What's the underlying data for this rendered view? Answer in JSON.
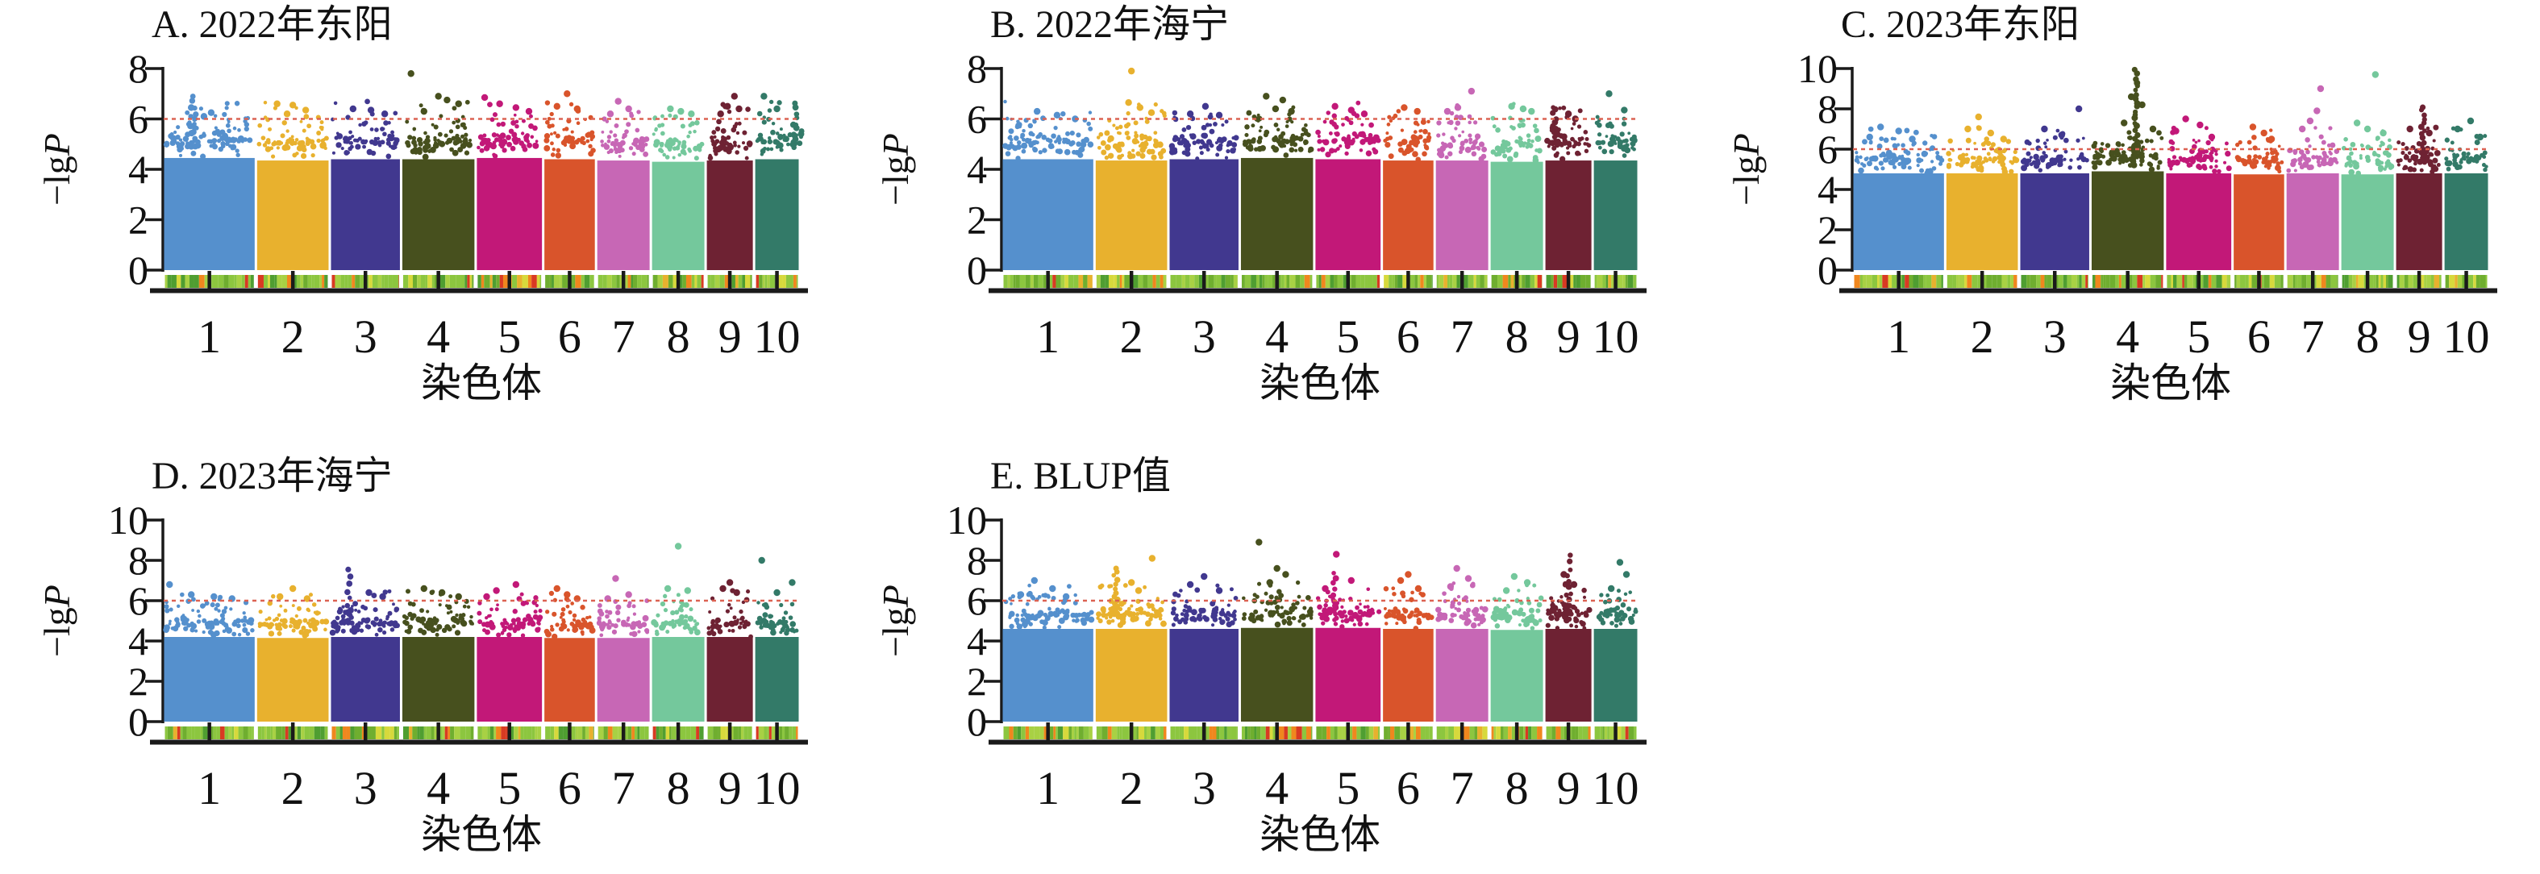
{
  "figure": {
    "background": "#ffffff",
    "ylabel": {
      "prefix": "−lg",
      "italic": "P"
    },
    "xlabel": "染色体",
    "x_tick_labels": [
      "1",
      "2",
      "3",
      "4",
      "5",
      "6",
      "7",
      "8",
      "9",
      "10"
    ],
    "colors": {
      "axis": "#1a1a1a",
      "text": "#1a1a1a",
      "threshold_line": "#dc6252",
      "chromosomes": [
        "#5590cd",
        "#e8b12e",
        "#41388f",
        "#47501e",
        "#c21878",
        "#d9542b",
        "#c767b5",
        "#74c89c",
        "#6e2233",
        "#337a68"
      ],
      "density_palette": [
        "#8cc63f",
        "#6fae2f",
        "#a8d144",
        "#4f9e31",
        "#d7d93c",
        "#f0871e",
        "#d93a22",
        "#e8b12e"
      ],
      "density_weights": [
        0.34,
        0.2,
        0.13,
        0.1,
        0.07,
        0.07,
        0.05,
        0.04
      ]
    },
    "chromosome_width_fractions": [
      0.146,
      0.116,
      0.112,
      0.117,
      0.106,
      0.083,
      0.086,
      0.086,
      0.076,
      0.072
    ]
  },
  "chart_data": [
    {
      "type": "scatter",
      "panel": "A",
      "title": "A. 2022年东阳",
      "ylim": [
        0,
        8
      ],
      "yticks": [
        8,
        6,
        4,
        2,
        0
      ],
      "threshold": 6,
      "grid": false,
      "legend": null,
      "chromosomes": [
        {
          "label": "1",
          "dense_top": 4.95,
          "spike": {
            "frac": 0.33,
            "max": 6.9,
            "n": 8
          },
          "outliers": [
            [
              0.3,
              6.45
            ],
            [
              0.52,
              6.25
            ],
            [
              0.44,
              6.1
            ]
          ]
        },
        {
          "label": "2",
          "dense_top": 4.85,
          "outliers": [
            [
              0.28,
              6.6
            ],
            [
              0.5,
              6.55
            ],
            [
              0.68,
              6.35
            ],
            [
              0.42,
              6.2
            ]
          ]
        },
        {
          "label": "3",
          "dense_top": 4.9,
          "outliers": [
            [
              0.32,
              6.4
            ],
            [
              0.58,
              6.35
            ],
            [
              0.78,
              6.2
            ]
          ]
        },
        {
          "label": "4",
          "dense_top": 4.9,
          "outliers": [
            [
              0.12,
              7.8
            ],
            [
              0.5,
              6.9
            ],
            [
              0.62,
              6.75
            ],
            [
              0.78,
              6.6
            ],
            [
              0.3,
              6.3
            ]
          ]
        },
        {
          "label": "5",
          "dense_top": 4.95,
          "outliers": [
            [
              0.12,
              6.85
            ],
            [
              0.35,
              6.6
            ],
            [
              0.6,
              6.45
            ],
            [
              0.8,
              6.3
            ]
          ]
        },
        {
          "label": "6",
          "dense_top": 4.9,
          "outliers": [
            [
              0.45,
              7.0
            ],
            [
              0.25,
              6.5
            ],
            [
              0.65,
              6.4
            ]
          ]
        },
        {
          "label": "7",
          "dense_top": 4.85,
          "outliers": [
            [
              0.4,
              6.7
            ],
            [
              0.6,
              6.4
            ],
            [
              0.25,
              6.2
            ]
          ]
        },
        {
          "label": "8",
          "dense_top": 4.8,
          "outliers": [
            [
              0.35,
              6.4
            ],
            [
              0.55,
              6.3
            ],
            [
              0.75,
              6.2
            ]
          ]
        },
        {
          "label": "9",
          "dense_top": 4.85,
          "outliers": [
            [
              0.6,
              6.9
            ],
            [
              0.45,
              6.5
            ],
            [
              0.7,
              6.4
            ],
            [
              0.3,
              6.2
            ]
          ]
        },
        {
          "label": "10",
          "dense_top": 4.9,
          "spike": {
            "frac": 0.92,
            "max": 6.6,
            "n": 8
          },
          "outliers": [
            [
              0.2,
              6.9
            ],
            [
              0.5,
              6.4
            ]
          ]
        }
      ]
    },
    {
      "type": "scatter",
      "panel": "B",
      "title": "B. 2022年海宁",
      "ylim": [
        0,
        8
      ],
      "yticks": [
        8,
        6,
        4,
        2,
        0
      ],
      "threshold": 6,
      "grid": false,
      "legend": null,
      "chromosomes": [
        {
          "label": "1",
          "dense_top": 4.9,
          "outliers": [
            [
              0.38,
              6.3
            ],
            [
              0.6,
              6.15
            ],
            [
              0.8,
              6.0
            ]
          ]
        },
        {
          "label": "2",
          "dense_top": 4.85,
          "outliers": [
            [
              0.5,
              7.9
            ],
            [
              0.46,
              6.65
            ],
            [
              0.62,
              6.45
            ],
            [
              0.78,
              6.25
            ]
          ]
        },
        {
          "label": "3",
          "dense_top": 4.9,
          "outliers": [
            [
              0.52,
              6.5
            ],
            [
              0.3,
              6.2
            ],
            [
              0.72,
              6.15
            ]
          ]
        },
        {
          "label": "4",
          "dense_top": 4.95,
          "outliers": [
            [
              0.35,
              6.9
            ],
            [
              0.58,
              6.75
            ],
            [
              0.48,
              6.4
            ],
            [
              0.7,
              6.3
            ]
          ]
        },
        {
          "label": "5",
          "dense_top": 4.9,
          "outliers": [
            [
              0.3,
              6.5
            ],
            [
              0.55,
              6.35
            ],
            [
              0.75,
              6.2
            ]
          ]
        },
        {
          "label": "6",
          "dense_top": 4.85,
          "outliers": [
            [
              0.42,
              6.45
            ],
            [
              0.68,
              6.3
            ]
          ]
        },
        {
          "label": "7",
          "dense_top": 4.85,
          "outliers": [
            [
              0.68,
              7.1
            ],
            [
              0.42,
              6.45
            ],
            [
              0.22,
              6.3
            ]
          ]
        },
        {
          "label": "8",
          "dense_top": 4.8,
          "outliers": [
            [
              0.4,
              6.5
            ],
            [
              0.62,
              6.4
            ],
            [
              0.78,
              6.3
            ]
          ]
        },
        {
          "label": "9",
          "dense_top": 4.85,
          "spike": {
            "frac": 0.2,
            "max": 6.5,
            "n": 10
          },
          "outliers": [
            [
              0.5,
              6.2
            ],
            [
              0.65,
              6.0
            ]
          ]
        },
        {
          "label": "10",
          "dense_top": 4.85,
          "outliers": [
            [
              0.35,
              7.0
            ],
            [
              0.7,
              6.35
            ]
          ]
        }
      ]
    },
    {
      "type": "scatter",
      "panel": "C",
      "title": "C. 2023年东阳",
      "ylim": [
        0,
        10
      ],
      "yticks": [
        10,
        8,
        6,
        4,
        2,
        0
      ],
      "threshold": 6,
      "grid": false,
      "legend": null,
      "chromosomes": [
        {
          "label": "1",
          "dense_top": 5.3,
          "outliers": [
            [
              0.3,
              7.1
            ],
            [
              0.5,
              6.9
            ],
            [
              0.18,
              6.6
            ],
            [
              0.65,
              6.5
            ]
          ]
        },
        {
          "label": "2",
          "dense_top": 5.3,
          "outliers": [
            [
              0.45,
              7.6
            ],
            [
              0.3,
              7.0
            ],
            [
              0.62,
              6.8
            ],
            [
              0.8,
              6.5
            ]
          ]
        },
        {
          "label": "3",
          "dense_top": 5.3,
          "outliers": [
            [
              0.85,
              8.0
            ],
            [
              0.35,
              7.0
            ],
            [
              0.6,
              6.7
            ]
          ]
        },
        {
          "label": "4",
          "dense_top": 5.4,
          "spike": {
            "frac": 0.62,
            "max": 9.9,
            "n": 22
          },
          "outliers": [
            [
              0.55,
              8.6
            ],
            [
              0.7,
              8.2
            ],
            [
              0.45,
              7.3
            ],
            [
              0.85,
              7.0
            ]
          ]
        },
        {
          "label": "5",
          "dense_top": 5.3,
          "outliers": [
            [
              0.3,
              7.5
            ],
            [
              0.52,
              7.2
            ],
            [
              0.15,
              6.9
            ],
            [
              0.7,
              6.6
            ]
          ]
        },
        {
          "label": "6",
          "dense_top": 5.25,
          "outliers": [
            [
              0.38,
              7.1
            ],
            [
              0.6,
              6.8
            ],
            [
              0.75,
              6.5
            ]
          ]
        },
        {
          "label": "7",
          "dense_top": 5.3,
          "outliers": [
            [
              0.65,
              9.0
            ],
            [
              0.58,
              7.9
            ],
            [
              0.45,
              7.4
            ],
            [
              0.3,
              7.0
            ]
          ]
        },
        {
          "label": "8",
          "dense_top": 5.25,
          "outliers": [
            [
              0.65,
              9.7
            ],
            [
              0.3,
              7.3
            ],
            [
              0.5,
              7.0
            ],
            [
              0.8,
              6.8
            ]
          ]
        },
        {
          "label": "9",
          "dense_top": 5.3,
          "spike": {
            "frac": 0.58,
            "max": 8.1,
            "n": 14
          },
          "outliers": [
            [
              0.3,
              7.0
            ],
            [
              0.72,
              6.8
            ]
          ]
        },
        {
          "label": "10",
          "dense_top": 5.3,
          "outliers": [
            [
              0.6,
              7.4
            ],
            [
              0.3,
              7.0
            ],
            [
              0.82,
              6.6
            ]
          ]
        }
      ]
    },
    {
      "type": "scatter",
      "panel": "D",
      "title": "D. 2023年海宁",
      "ylim": [
        0,
        10
      ],
      "yticks": [
        10,
        8,
        6,
        4,
        2,
        0
      ],
      "threshold": 6,
      "grid": false,
      "legend": null,
      "chromosomes": [
        {
          "label": "1",
          "dense_top": 4.7,
          "outliers": [
            [
              0.06,
              6.8
            ],
            [
              0.3,
              6.3
            ],
            [
              0.55,
              6.2
            ],
            [
              0.75,
              6.1
            ]
          ]
        },
        {
          "label": "2",
          "dense_top": 4.65,
          "outliers": [
            [
              0.5,
              6.6
            ],
            [
              0.32,
              6.2
            ],
            [
              0.7,
              6.1
            ]
          ]
        },
        {
          "label": "3",
          "dense_top": 4.7,
          "spike": {
            "frac": 0.26,
            "max": 7.6,
            "n": 8
          },
          "outliers": [
            [
              0.55,
              6.4
            ],
            [
              0.75,
              6.2
            ]
          ]
        },
        {
          "label": "4",
          "dense_top": 4.7,
          "outliers": [
            [
              0.3,
              6.6
            ],
            [
              0.55,
              6.4
            ],
            [
              0.78,
              6.2
            ]
          ]
        },
        {
          "label": "5",
          "dense_top": 4.7,
          "outliers": [
            [
              0.6,
              6.8
            ],
            [
              0.3,
              6.5
            ],
            [
              0.15,
              6.2
            ]
          ]
        },
        {
          "label": "6",
          "dense_top": 4.65,
          "outliers": [
            [
              0.25,
              6.6
            ],
            [
              0.45,
              6.3
            ],
            [
              0.65,
              6.1
            ]
          ]
        },
        {
          "label": "7",
          "dense_top": 4.65,
          "outliers": [
            [
              0.35,
              7.1
            ],
            [
              0.6,
              6.3
            ],
            [
              0.2,
              6.1
            ]
          ]
        },
        {
          "label": "8",
          "dense_top": 4.7,
          "outliers": [
            [
              0.5,
              8.7
            ],
            [
              0.3,
              6.6
            ],
            [
              0.68,
              6.5
            ]
          ]
        },
        {
          "label": "9",
          "dense_top": 4.7,
          "outliers": [
            [
              0.5,
              6.9
            ],
            [
              0.35,
              6.6
            ],
            [
              0.65,
              6.4
            ]
          ]
        },
        {
          "label": "10",
          "dense_top": 4.7,
          "outliers": [
            [
              0.15,
              8.0
            ],
            [
              0.85,
              6.9
            ],
            [
              0.5,
              6.4
            ]
          ]
        }
      ]
    },
    {
      "type": "scatter",
      "panel": "E",
      "title": "E. BLUP值",
      "ylim": [
        0,
        10
      ],
      "yticks": [
        10,
        8,
        6,
        4,
        2,
        0
      ],
      "threshold": 6,
      "grid": false,
      "legend": null,
      "chromosomes": [
        {
          "label": "1",
          "dense_top": 5.1,
          "outliers": [
            [
              0.35,
              7.0
            ],
            [
              0.55,
              6.6
            ],
            [
              0.2,
              6.3
            ],
            [
              0.7,
              6.2
            ]
          ]
        },
        {
          "label": "2",
          "dense_top": 5.1,
          "spike": {
            "frac": 0.28,
            "max": 7.6,
            "n": 12
          },
          "outliers": [
            [
              0.79,
              8.1
            ],
            [
              0.5,
              6.9
            ],
            [
              0.6,
              6.5
            ]
          ]
        },
        {
          "label": "3",
          "dense_top": 5.1,
          "outliers": [
            [
              0.5,
              7.2
            ],
            [
              0.3,
              6.8
            ],
            [
              0.72,
              6.5
            ]
          ]
        },
        {
          "label": "4",
          "dense_top": 5.15,
          "outliers": [
            [
              0.25,
              8.9
            ],
            [
              0.5,
              7.6
            ],
            [
              0.62,
              7.3
            ],
            [
              0.4,
              6.9
            ]
          ]
        },
        {
          "label": "5",
          "dense_top": 5.15,
          "spike": {
            "frac": 0.3,
            "max": 7.4,
            "n": 8
          },
          "outliers": [
            [
              0.32,
              8.3
            ],
            [
              0.55,
              7.0
            ],
            [
              0.15,
              6.6
            ]
          ]
        },
        {
          "label": "6",
          "dense_top": 5.1,
          "outliers": [
            [
              0.5,
              7.3
            ],
            [
              0.35,
              7.0
            ],
            [
              0.7,
              6.6
            ]
          ]
        },
        {
          "label": "7",
          "dense_top": 5.1,
          "outliers": [
            [
              0.4,
              7.6
            ],
            [
              0.62,
              7.1
            ],
            [
              0.28,
              6.7
            ]
          ]
        },
        {
          "label": "8",
          "dense_top": 5.05,
          "outliers": [
            [
              0.45,
              7.2
            ],
            [
              0.7,
              6.9
            ],
            [
              0.3,
              6.5
            ]
          ]
        },
        {
          "label": "9",
          "dense_top": 5.1,
          "spike": {
            "frac": 0.5,
            "max": 8.2,
            "n": 10
          },
          "outliers": [
            [
              0.4,
              7.3
            ],
            [
              0.62,
              6.8
            ]
          ]
        },
        {
          "label": "10",
          "dense_top": 5.1,
          "outliers": [
            [
              0.6,
              7.9
            ],
            [
              0.75,
              7.3
            ],
            [
              0.4,
              6.6
            ]
          ]
        }
      ]
    }
  ]
}
